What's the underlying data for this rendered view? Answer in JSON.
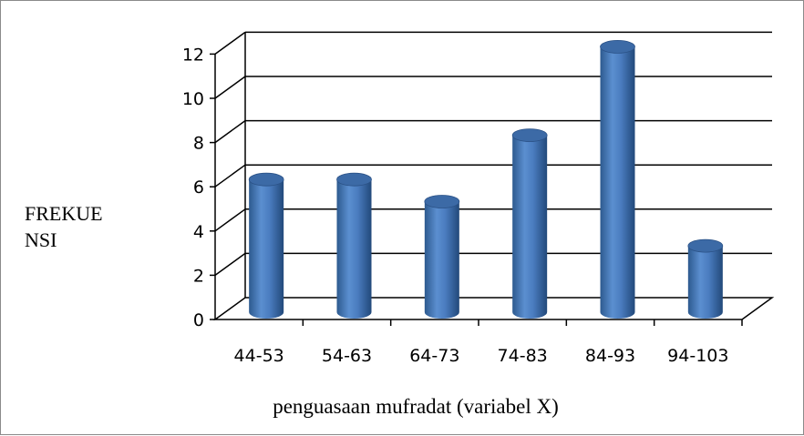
{
  "chart_data": {
    "type": "bar",
    "categories": [
      "44-53",
      "54-63",
      "64-73",
      "74-83",
      "84-93",
      "94-103"
    ],
    "values": [
      6,
      6,
      5,
      8,
      12,
      3
    ],
    "ylabel": "FREKUE\nNSI",
    "xlabel": "penguasaan mufradat (variabel X)",
    "ylim": [
      0,
      12
    ],
    "yticks": [
      0,
      2,
      4,
      6,
      8,
      10,
      12
    ],
    "grid": true,
    "style": "3d-cylinder",
    "bar_color": "#4F81BD",
    "legend": "none"
  }
}
